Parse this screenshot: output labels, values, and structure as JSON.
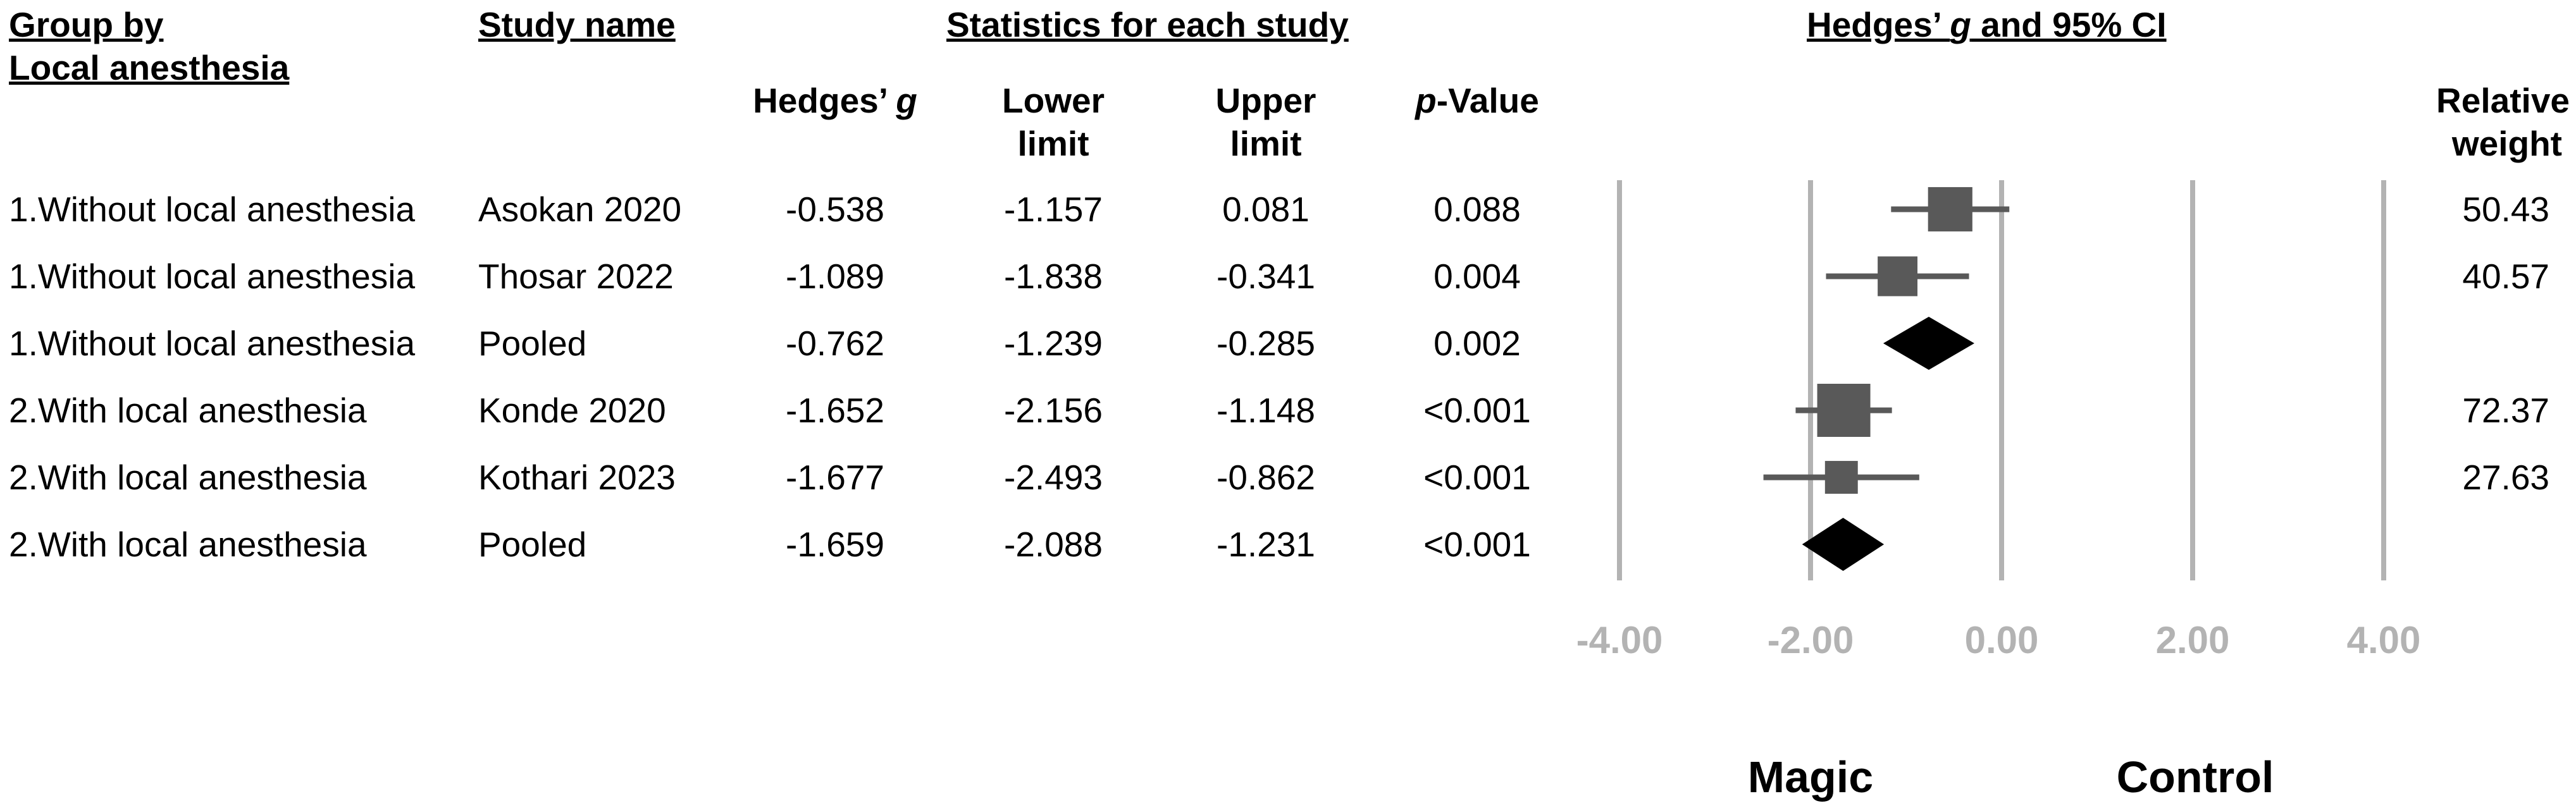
{
  "headers": {
    "group_line1": "Group by",
    "group_line2": "Local anesthesia",
    "study_name": "Study name",
    "stats_title": "Statistics for each study",
    "ci_title_pre": "Hedges’ ",
    "ci_title_g": "g",
    "ci_title_post": " and 95% CI",
    "hedges_pre": "Hedges’ ",
    "hedges_g": "g",
    "lower_line1": "Lower",
    "lower_line2": "limit",
    "upper_line1": "Upper",
    "upper_line2": "limit",
    "p_pre": "p",
    "p_post": "-Value",
    "weight_line1": "Relative",
    "weight_line2": "weight"
  },
  "rows": [
    {
      "group": "1.Without local anesthesia",
      "study": "Asokan 2020",
      "g": "-0.538",
      "lower": "-1.157",
      "upper": "0.081",
      "p": "0.088",
      "weight": "50.43"
    },
    {
      "group": "1.Without local anesthesia",
      "study": "Thosar 2022",
      "g": "-1.089",
      "lower": "-1.838",
      "upper": "-0.341",
      "p": "0.004",
      "weight": "40.57"
    },
    {
      "group": "1.Without local anesthesia",
      "study": "Pooled",
      "g": "-0.762",
      "lower": "-1.239",
      "upper": "-0.285",
      "p": "0.002",
      "weight": ""
    },
    {
      "group": "2.With local anesthesia",
      "study": "Konde 2020",
      "g": "-1.652",
      "lower": "-2.156",
      "upper": "-1.148",
      "p": "<0.001",
      "weight": "72.37"
    },
    {
      "group": "2.With local anesthesia",
      "study": "Kothari 2023",
      "g": "-1.677",
      "lower": "-2.493",
      "upper": "-0.862",
      "p": "<0.001",
      "weight": "27.63"
    },
    {
      "group": "2.With local anesthesia",
      "study": "Pooled",
      "g": "-1.659",
      "lower": "-2.088",
      "upper": "-1.231",
      "p": "<0.001",
      "weight": ""
    }
  ],
  "chart_data": {
    "type": "forest",
    "x_ticks": [
      "-4.00",
      "-2.00",
      "0.00",
      "2.00",
      "4.00"
    ],
    "xlim": [
      -4,
      4
    ],
    "gridlines_at": [
      -4,
      -2,
      0,
      2,
      4
    ],
    "left_label": "Magic",
    "right_label": "Control",
    "studies": [
      {
        "label": "Asokan 2020",
        "g": -0.538,
        "lower": -1.157,
        "upper": 0.081,
        "weight": 50.43,
        "pooled": false
      },
      {
        "label": "Thosar 2022",
        "g": -1.089,
        "lower": -1.838,
        "upper": -0.341,
        "weight": 40.57,
        "pooled": false
      },
      {
        "label": "Pooled",
        "g": -0.762,
        "lower": -1.239,
        "upper": -0.285,
        "weight": null,
        "pooled": true
      },
      {
        "label": "Konde 2020",
        "g": -1.652,
        "lower": -2.156,
        "upper": -1.148,
        "weight": 72.37,
        "pooled": false
      },
      {
        "label": "Kothari 2023",
        "g": -1.677,
        "lower": -2.493,
        "upper": -0.862,
        "weight": 27.63,
        "pooled": false
      },
      {
        "label": "Pooled",
        "g": -1.659,
        "lower": -2.088,
        "upper": -1.231,
        "weight": null,
        "pooled": true
      }
    ],
    "colors": {
      "study_marker": "#595959",
      "pooled_marker": "#000000",
      "gridline": "#b3b3b3",
      "tick_label": "#b3b3b3"
    }
  }
}
